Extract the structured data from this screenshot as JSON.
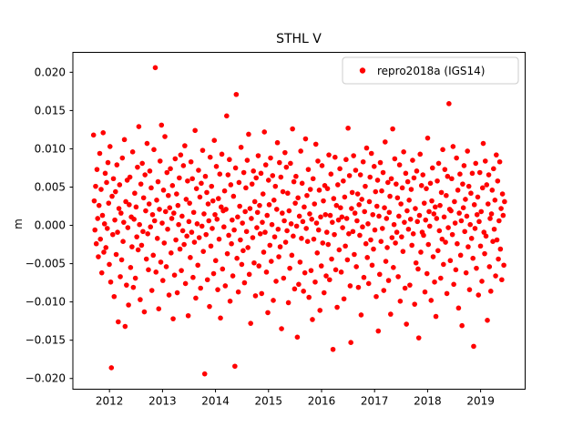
{
  "title": "STHL V",
  "ylabel": "m",
  "legend": {
    "label": "repro2018a (IGS14)",
    "marker_color": "#ff0000"
  },
  "chart_data": {
    "type": "scatter",
    "title": "STHL V",
    "xlabel": "",
    "ylabel": "m",
    "grid": false,
    "legend_position": "upper right",
    "series_name": "repro2018a (IGS14)",
    "marker_color": "#ff0000",
    "marker_size_px": 2.8,
    "xlim": [
      2011.31,
      2019.84
    ],
    "ylim": [
      -0.0214,
      0.0226
    ],
    "xticks": [
      2012,
      2013,
      2014,
      2015,
      2016,
      2017,
      2018,
      2019
    ],
    "xtick_labels": [
      "2012",
      "2013",
      "2014",
      "2015",
      "2016",
      "2017",
      "2018",
      "2019"
    ],
    "yticks": [
      -0.02,
      -0.015,
      -0.01,
      -0.005,
      0.0,
      0.005,
      0.01,
      0.015,
      0.02
    ],
    "ytick_labels": [
      "−0.020",
      "−0.015",
      "−0.010",
      "−0.005",
      "0.000",
      "0.005",
      "0.010",
      "0.015",
      "0.020"
    ],
    "x_start": 2011.7,
    "x_step": 0.01294,
    "y_unit_m": 0.001,
    "y_mm": [
      11.8,
      3.2,
      -0.6,
      5.1,
      -2.4,
      7.3,
      0.9,
      -4.1,
      2.6,
      9.4,
      -1.8,
      4.7,
      -6.2,
      1.3,
      12.1,
      -3.5,
      0.2,
      6.8,
      -2.9,
      5.6,
      -0.4,
      8.2,
      2.9,
      -5.1,
      10.3,
      -7.4,
      -18.6,
      3.8,
      -1.2,
      6.1,
      -9.3,
      0.7,
      4.4,
      -3.8,
      7.9,
      -0.9,
      -12.6,
      2.2,
      5.3,
      -6.7,
      1.6,
      -4.5,
      8.8,
      -2.1,
      0.4,
      11.2,
      -13.2,
      3.1,
      -7.8,
      5.9,
      -0.3,
      -10.4,
      2.7,
      6.3,
      -5.5,
      1.1,
      -2.8,
      9.6,
      -8.1,
      0.8,
      4.2,
      -6.9,
      2.4,
      -1.5,
      7.6,
      -3.2,
      12.9,
      0.1,
      -9.7,
      5.4,
      -2.6,
      8.1,
      -0.8,
      3.6,
      -11.3,
      6.6,
      1.9,
      -4.4,
      10.7,
      -1.1,
      -5.8,
      2.8,
      7.1,
      -0.2,
      4.9,
      -8.5,
      1.4,
      -3.9,
      9.9,
      0.6,
      20.6,
      -6.1,
      3.3,
      -1.7,
      5.7,
      -10.9,
      2.1,
      8.4,
      -4.8,
      13.1,
      0.3,
      -7.2,
      4.6,
      -2.3,
      11.6,
      1.8,
      -5.4,
      6.9,
      -0.5,
      3.9,
      -9.1,
      2.3,
      7.4,
      -3.6,
      0.9,
      5.2,
      -12.2,
      1.6,
      -6.5,
      8.7,
      -1.9,
      4.1,
      -8.8,
      2.6,
      0.1,
      6.2,
      -3.1,
      9.2,
      -5.9,
      1.2,
      -0.7,
      7.8,
      -2.5,
      10.4,
      -7.6,
      3.4,
      -1.4,
      5.8,
      -11.8,
      0.5,
      2.9,
      -4.2,
      8.3,
      -0.9,
      6.1,
      -6.8,
      1.7,
      -2.2,
      12.4,
      -9.5,
      4.8,
      0.2,
      -5.2,
      7.2,
      -1.6,
      3.7,
      -8.2,
      5.5,
      -0.1,
      9.8,
      -3.4,
      1.5,
      -19.4,
      6.4,
      -1.2,
      4.3,
      -7.1,
      2.8,
      0.6,
      -10.6,
      8.9,
      -2.7,
      5.1,
      -0.4,
      3.2,
      -6.3,
      11.1,
      1.4,
      -4.6,
      7.7,
      0.8,
      -8.4,
      3.5,
      -1.8,
      6.7,
      -12.1,
      2.4,
      9.3,
      -5.7,
      1.9,
      -0.2,
      4.5,
      -7.9,
      2.1,
      14.3,
      -3.7,
      6.6,
      -1.3,
      8.6,
      -9.9,
      5.3,
      -2.4,
      0.7,
      -6.6,
      3.8,
      -0.6,
      -18.4,
      7.5,
      17.1,
      -4.3,
      1.1,
      -8.7,
      5.6,
      2.5,
      -1.9,
      10.2,
      -5.1,
      0.3,
      -3.3,
      6.9,
      -7.5,
      1.8,
      4.9,
      -0.8,
      8.5,
      -2.9,
      11.9,
      -6.4,
      2.2,
      -12.8,
      0.9,
      5.4,
      -1.6,
      7.1,
      -4.9,
      3.1,
      -9.2,
      6.2,
      -0.3,
      1.7,
      9.1,
      -5.3,
      2.6,
      -1.1,
      6.8,
      -8.9,
      0.4,
      4.1,
      -3.5,
      12.2,
      -0.9,
      7.9,
      -6.1,
      1.3,
      -11.4,
      5.9,
      2.7,
      -2.6,
      8.8,
      -4.7,
      0.1,
      6.5,
      -9.8,
      3.3,
      -1.5,
      5.1,
      -7.3,
      2.1,
      10.8,
      -0.5,
      -4.1,
      8.2,
      -2.8,
      6.3,
      -13.5,
      1.6,
      4.4,
      -6.9,
      0.6,
      9.5,
      -2.2,
      7.6,
      -0.7,
      4.2,
      -10.1,
      1.9,
      -5.6,
      8.1,
      0.2,
      -3.9,
      12.6,
      -1.4,
      5.7,
      -8.3,
      2.9,
      6.4,
      -0.1,
      -14.6,
      3.6,
      -7.7,
      1.2,
      -4.8,
      9.7,
      -1.7,
      5.5,
      0.5,
      -8.6,
      2.4,
      -6.2,
      11.3,
      -0.4,
      3.9,
      -2.1,
      7.3,
      -9.4,
      1.5,
      4.7,
      -5.9,
      0.8,
      -12.3,
      6.1,
      -1.8,
      2.8,
      -7.4,
      10.6,
      0.3,
      -3.6,
      8.4,
      -0.6,
      4.6,
      -11.1,
      1.1,
      -5.3,
      7.8,
      -2.3,
      3.2,
      -8.8,
      5.2,
      1.4,
      -6.6,
      -0.9,
      4.8,
      -2.5,
      9.2,
      -7.1,
      1.3,
      6.7,
      -4.4,
      0.4,
      -16.2,
      3.5,
      -1.2,
      8.9,
      -5.8,
      2.6,
      -10.7,
      5.3,
      0.7,
      -3.2,
      7.4,
      2.3,
      -6.1,
      1.1,
      -0.3,
      5.8,
      -9.6,
      3.7,
      -2.7,
      8.6,
      0.9,
      -4.5,
      12.7,
      -1.1,
      6.5,
      -7.9,
      -15.3,
      2.2,
      4.3,
      -0.8,
      9.1,
      -3.8,
      1.6,
      7.2,
      -5.4,
      0.6,
      4.1,
      -8.1,
      2.7,
      -1.3,
      6.6,
      -11.7,
      3.4,
      -0.2,
      8.3,
      -6.8,
      1.8,
      5.1,
      -2.4,
      10.1,
      -4.2,
      0.2,
      -7.6,
      3.1,
      6.3,
      -1.9,
      9.4,
      -5.2,
      1.4,
      -3.1,
      7.7,
      -0.6,
      4.4,
      -9.3,
      2.5,
      5.9,
      -13.8,
      1.2,
      -6.4,
      8.2,
      -2.1,
      4.5,
      -0.4,
      6.9,
      -8.5,
      2.3,
      10.9,
      -4.7,
      0.9,
      -2.9,
      5.6,
      -7.2,
      1.7,
      3.8,
      -11.6,
      6.1,
      -1.6,
      12.6,
      -5.5,
      0.1,
      8.7,
      -2.3,
      5.4,
      -0.9,
      3.6,
      -6.7,
      1.2,
      7.9,
      -9.9,
      2.8,
      -1.5,
      4.9,
      -3.4,
      9.6,
      0.4,
      -8.2,
      6.8,
      -12.9,
      1.9,
      5.7,
      -0.5,
      3.3,
      -7.8,
      0.8,
      4.7,
      -2.6,
      8.5,
      -1.1,
      6.2,
      -10.3,
      2.2,
      -4.9,
      7.1,
      0.5,
      -5.7,
      -14.7,
      1.3,
      9.3,
      -3.5,
      5.2,
      -0.9,
      6.6,
      -1.3,
      2.9,
      -8.7,
      0.7,
      4.8,
      -6.3,
      11.4,
      -2.5,
      1.8,
      -0.1,
      5.5,
      -9.8,
      3.2,
      7.5,
      -4.1,
      1.5,
      -7.4,
      2.4,
      -11.9,
      0.9,
      5.8,
      -3.3,
      8.1,
      -0.7,
      2.6,
      -6.9,
      4.3,
      -1.8,
      9.9,
      -5.1,
      1.1,
      7.3,
      -2.2,
      3.9,
      -8.9,
      6.4,
      -0.3,
      15.9,
      2.1,
      -4.6,
      1.9,
      6.1,
      -1.2,
      10.3,
      -7.7,
      3.1,
      0.3,
      -5.8,
      8.8,
      -2.4,
      4.6,
      -10.8,
      1.6,
      6.7,
      -3.9,
      0.6,
      -13.1,
      5.4,
      2.3,
      7.8,
      -0.8,
      3.4,
      -6.2,
      1.2,
      9.7,
      -2.8,
      5.1,
      -8.4,
      0.1,
      4.2,
      -1.7,
      6.8,
      -4.3,
      -15.8,
      2.7,
      -0.4,
      8.1,
      -5.6,
      1.4,
      3.7,
      -9.1,
      0.5,
      6.9,
      -2.7,
      1.8,
      -7.3,
      4.9,
      10.7,
      -0.9,
      -3.7,
      8.4,
      -1.4,
      5.3,
      -12.4,
      2.8,
      6.6,
      -5.4,
      0.9,
      -8.6,
      1.5,
      4.6,
      -2.1,
      7.4,
      -0.5,
      3.3,
      -6.6,
      9.2,
      -1.9,
      5.8,
      -4.4,
      0.6,
      8.3,
      -3.1,
      2.2,
      -7.1,
      4.1,
      1.3,
      -5.2,
      3.1
    ]
  }
}
